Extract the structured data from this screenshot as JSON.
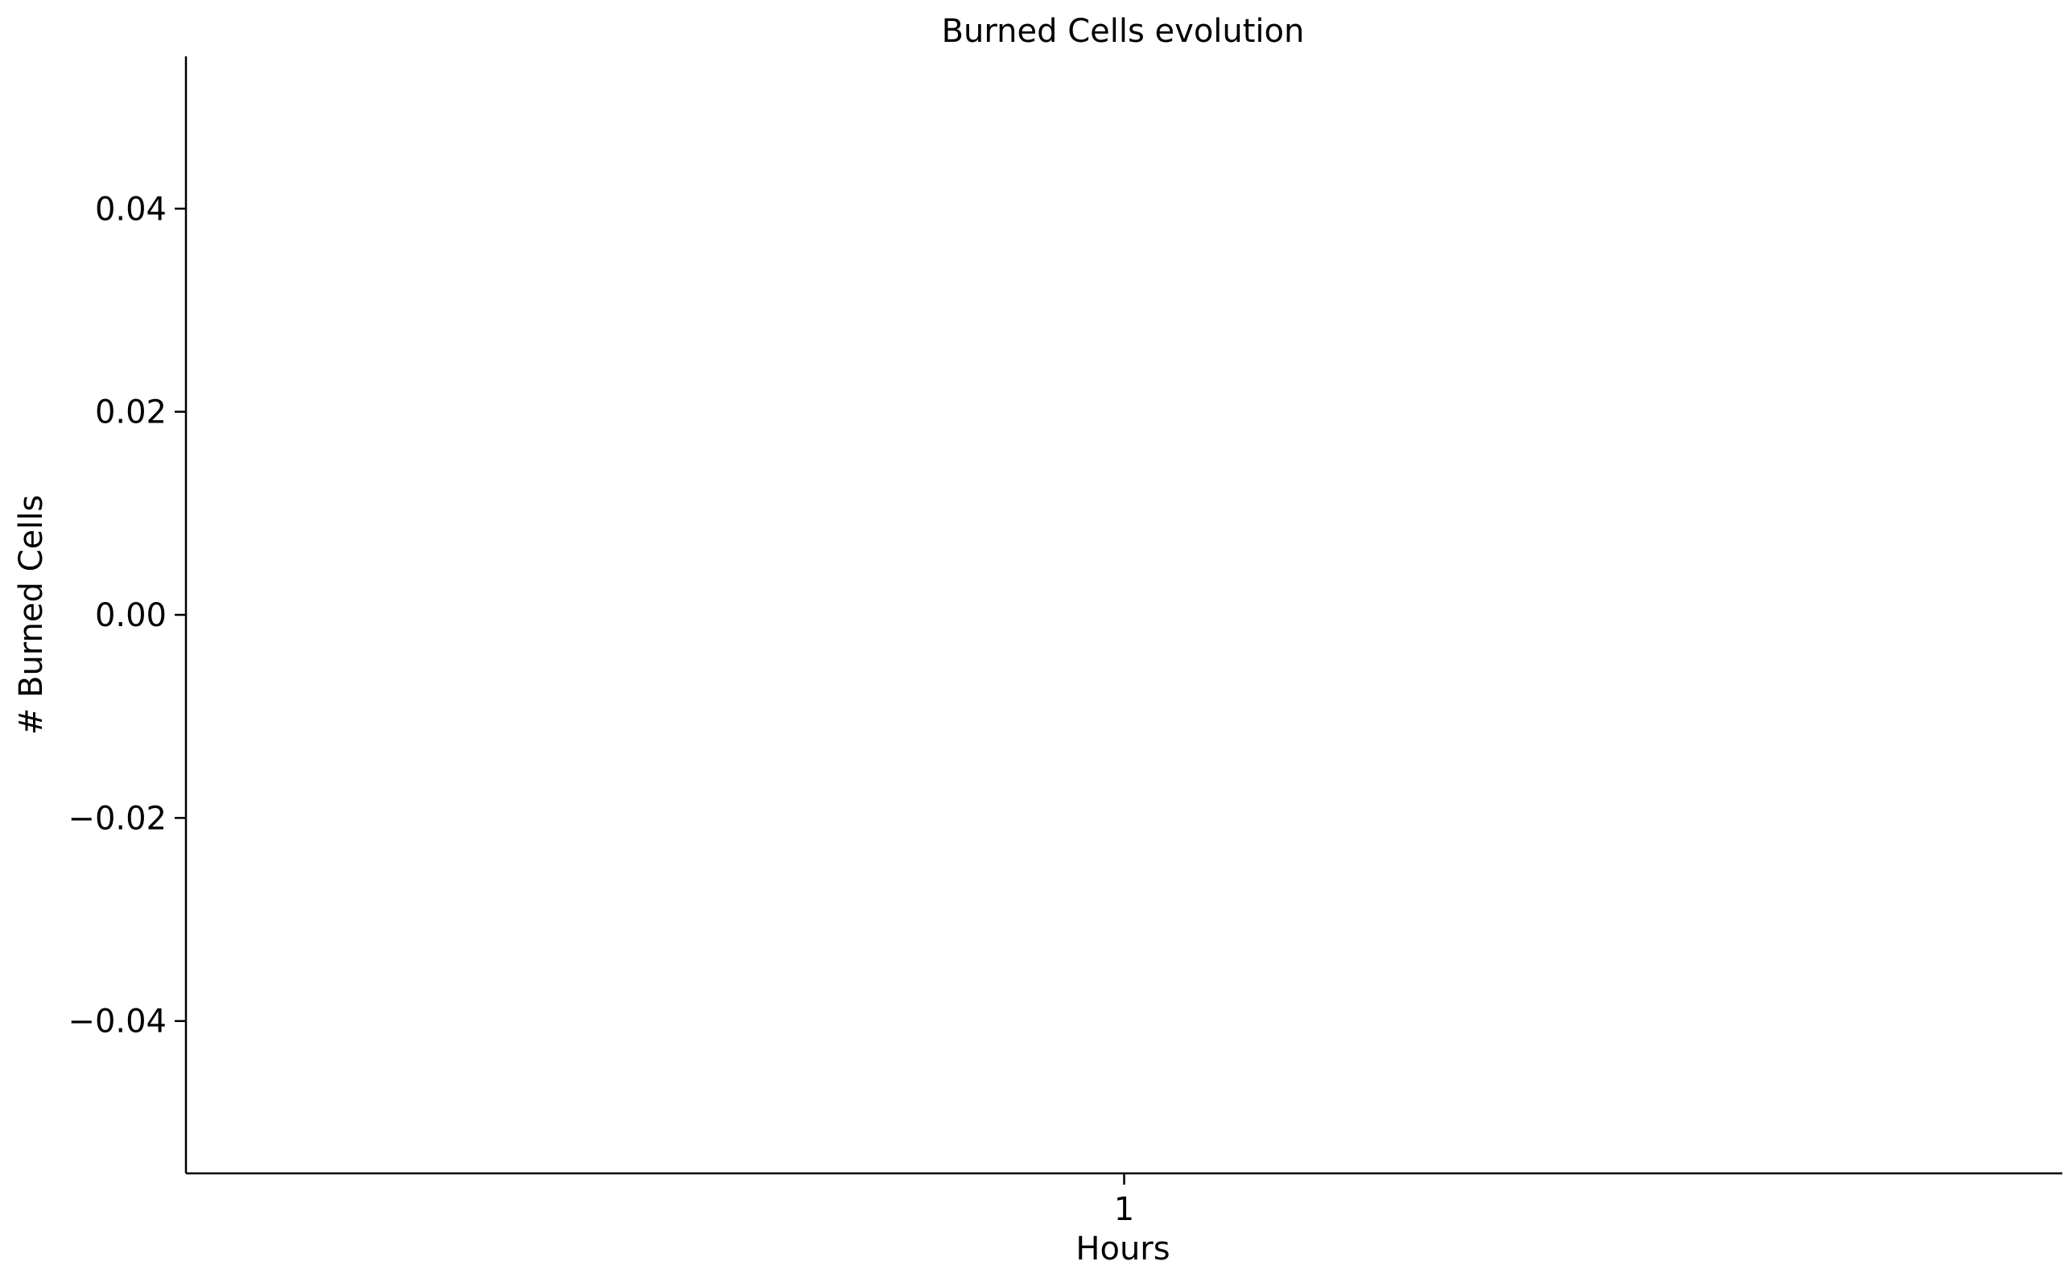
{
  "chart_data": {
    "type": "bar",
    "title": "Burned Cells evolution",
    "xlabel": "Hours",
    "ylabel": "# Burned Cells",
    "categories": [
      "1"
    ],
    "values": [
      0.0
    ],
    "ylim": [
      -0.055,
      0.055
    ],
    "yticks": [
      {
        "value": 0.04,
        "label": "0.04"
      },
      {
        "value": 0.02,
        "label": "0.02"
      },
      {
        "value": 0.0,
        "label": "0.00"
      },
      {
        "value": -0.02,
        "label": "−0.02"
      },
      {
        "value": -0.04,
        "label": "−0.04"
      }
    ],
    "grid": false,
    "bar_color": "#666666"
  }
}
